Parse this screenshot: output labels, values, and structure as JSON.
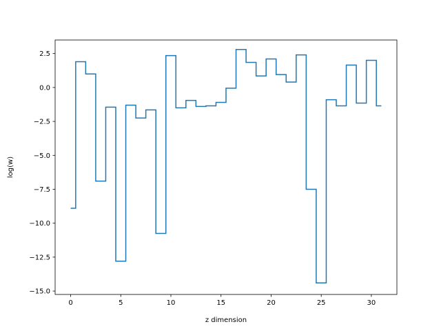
{
  "chart_data": {
    "type": "line",
    "drawstyle": "steps-mid",
    "title": "",
    "xlabel": "z dimension",
    "ylabel": "log(w)",
    "xlim": [
      -1.55,
      32.55
    ],
    "ylim": [
      -15.25,
      3.5
    ],
    "xticks": [
      0,
      5,
      10,
      15,
      20,
      25,
      30
    ],
    "xtick_labels": [
      "0",
      "5",
      "10",
      "15",
      "20",
      "25",
      "30"
    ],
    "yticks": [
      2.5,
      0.0,
      -2.5,
      -5.0,
      -7.5,
      -10.0,
      -12.5,
      -15.0
    ],
    "ytick_labels": [
      "2.5",
      "0.0",
      "−2.5",
      "−5.0",
      "−7.5",
      "−10.0",
      "−12.5",
      "−15.0"
    ],
    "grid": false,
    "color": "#1f77b4",
    "x": [
      0,
      1,
      2,
      3,
      4,
      5,
      6,
      7,
      8,
      9,
      10,
      11,
      12,
      13,
      14,
      15,
      16,
      17,
      18,
      19,
      20,
      21,
      22,
      23,
      24,
      25,
      26,
      27,
      28,
      29,
      30,
      31
    ],
    "values": [
      -8.9,
      1.9,
      1.0,
      -6.9,
      -1.45,
      -12.8,
      -1.3,
      -2.25,
      -1.65,
      -10.75,
      2.35,
      -1.5,
      -0.95,
      -1.4,
      -1.35,
      -1.1,
      -0.05,
      2.8,
      1.85,
      0.85,
      2.1,
      0.95,
      0.4,
      2.4,
      -7.5,
      -14.4,
      -0.9,
      -1.35,
      1.65,
      -1.15,
      2.0,
      -1.35
    ]
  }
}
